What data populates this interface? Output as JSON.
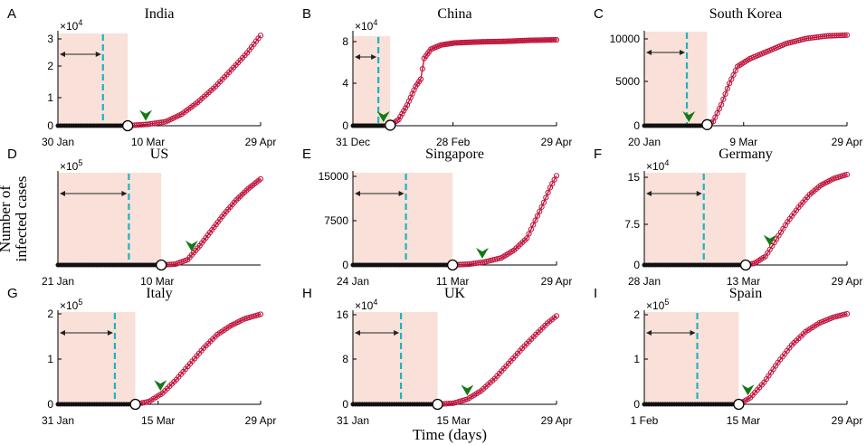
{
  "figure": {
    "xlabel": "Time (days)",
    "ylabel_line1": "Number of",
    "ylabel_line2": "infected cases"
  },
  "colors": {
    "curve": "#c0143c",
    "window": "#f9e0d8",
    "dash": "#1bb5c0",
    "arrowhead": "#137a13"
  },
  "chart_data": [
    {
      "type": "line",
      "letter": "A",
      "title": "India",
      "multiplier": "×10",
      "exponent": "4",
      "ylim": [
        0,
        3.2
      ],
      "yticks": [
        "0",
        "1",
        "2",
        "3"
      ],
      "ytick_values": [
        0,
        1,
        2,
        3
      ],
      "xticks": [
        "30 Jan",
        "10 Mar",
        "29 Apr"
      ],
      "xtick_days": [
        0,
        40,
        90
      ],
      "xmax": 90,
      "window_end_day": 31,
      "dash_day": 20,
      "open_circle_day": 31,
      "arrow_day": 39,
      "series": [
        {
          "day": 0,
          "value": 0
        },
        {
          "day": 31,
          "value": 0
        },
        {
          "day": 40,
          "value": 0.05
        },
        {
          "day": 48,
          "value": 0.14
        },
        {
          "day": 55,
          "value": 0.4
        },
        {
          "day": 62,
          "value": 0.8
        },
        {
          "day": 70,
          "value": 1.35
        },
        {
          "day": 78,
          "value": 2.0
        },
        {
          "day": 84,
          "value": 2.5
        },
        {
          "day": 90,
          "value": 3.1
        }
      ]
    },
    {
      "type": "line",
      "letter": "B",
      "title": "China",
      "multiplier": "×10",
      "exponent": "4",
      "ylim": [
        0,
        9
      ],
      "yticks": [
        "0",
        "4",
        "8"
      ],
      "ytick_values": [
        0,
        4,
        8
      ],
      "xticks": [
        "31 Dec",
        "28 Feb",
        "29 Apr"
      ],
      "xtick_days": [
        0,
        59,
        120
      ],
      "xmax": 120,
      "window_end_day": 22,
      "dash_day": 15,
      "open_circle_day": 22,
      "arrow_day": 18,
      "series": [
        {
          "day": 0,
          "value": 0
        },
        {
          "day": 19,
          "value": 0
        },
        {
          "day": 22,
          "value": 0.05
        },
        {
          "day": 27,
          "value": 0.6
        },
        {
          "day": 32,
          "value": 2.0
        },
        {
          "day": 37,
          "value": 3.8
        },
        {
          "day": 40,
          "value": 4.5
        },
        {
          "day": 42,
          "value": 6.5
        },
        {
          "day": 46,
          "value": 7.4
        },
        {
          "day": 52,
          "value": 7.8
        },
        {
          "day": 60,
          "value": 8.0
        },
        {
          "day": 75,
          "value": 8.1
        },
        {
          "day": 90,
          "value": 8.15
        },
        {
          "day": 105,
          "value": 8.25
        },
        {
          "day": 120,
          "value": 8.3
        }
      ]
    },
    {
      "type": "line",
      "letter": "C",
      "title": "South Korea",
      "multiplier": "",
      "exponent": "",
      "ylim": [
        0,
        11000
      ],
      "yticks": [
        "0",
        "5000",
        "10000"
      ],
      "ytick_values": [
        0,
        5000,
        10000
      ],
      "xticks": [
        "20 Jan",
        "9 Mar",
        "29 Apr"
      ],
      "xtick_days": [
        0,
        49,
        100
      ],
      "xmax": 100,
      "window_end_day": 31,
      "dash_day": 21,
      "open_circle_day": 31,
      "arrow_day": 22,
      "series": [
        {
          "day": 0,
          "value": 0
        },
        {
          "day": 30,
          "value": 0
        },
        {
          "day": 34,
          "value": 500
        },
        {
          "day": 38,
          "value": 2500
        },
        {
          "day": 42,
          "value": 5000
        },
        {
          "day": 46,
          "value": 7000
        },
        {
          "day": 52,
          "value": 7900
        },
        {
          "day": 60,
          "value": 8700
        },
        {
          "day": 70,
          "value": 9700
        },
        {
          "day": 80,
          "value": 10300
        },
        {
          "day": 90,
          "value": 10600
        },
        {
          "day": 100,
          "value": 10700
        }
      ]
    },
    {
      "type": "line",
      "letter": "D",
      "title": "US",
      "multiplier": "×10",
      "exponent": "5",
      "ylim": [
        0,
        10.5
      ],
      "yticks": [],
      "ytick_values": [],
      "xticks": [
        "21 Jan",
        "10 Mar"
      ],
      "xtick_days": [
        0,
        49
      ],
      "xmax": 100,
      "window_end_day": 51,
      "dash_day": 35,
      "open_circle_day": 51,
      "arrow_day": 66,
      "series": [
        {
          "day": 0,
          "value": 0
        },
        {
          "day": 51,
          "value": 0
        },
        {
          "day": 58,
          "value": 0.1
        },
        {
          "day": 64,
          "value": 0.6
        },
        {
          "day": 70,
          "value": 2.2
        },
        {
          "day": 76,
          "value": 4.0
        },
        {
          "day": 82,
          "value": 5.8
        },
        {
          "day": 88,
          "value": 7.4
        },
        {
          "day": 94,
          "value": 8.7
        },
        {
          "day": 100,
          "value": 9.8
        }
      ]
    },
    {
      "type": "line",
      "letter": "E",
      "title": "Singapore",
      "multiplier": "",
      "exponent": "",
      "ylim": [
        0,
        15500
      ],
      "yticks": [
        "0",
        "7500",
        "15000"
      ],
      "ytick_values": [
        0,
        7500,
        15000
      ],
      "xticks": [
        "24 Jan",
        "11 Mar",
        "29 Apr"
      ],
      "xtick_days": [
        0,
        47,
        96
      ],
      "xmax": 96,
      "window_end_day": 47,
      "dash_day": 25,
      "open_circle_day": 47,
      "arrow_day": 61,
      "series": [
        {
          "day": 0,
          "value": 0
        },
        {
          "day": 47,
          "value": 0
        },
        {
          "day": 55,
          "value": 150
        },
        {
          "day": 62,
          "value": 500
        },
        {
          "day": 70,
          "value": 1200
        },
        {
          "day": 76,
          "value": 2500
        },
        {
          "day": 82,
          "value": 4500
        },
        {
          "day": 86,
          "value": 7500
        },
        {
          "day": 90,
          "value": 10500
        },
        {
          "day": 93,
          "value": 13000
        },
        {
          "day": 96,
          "value": 15000
        }
      ]
    },
    {
      "type": "line",
      "letter": "F",
      "title": "Germany",
      "multiplier": "×10",
      "exponent": "4",
      "ylim": [
        0,
        16
      ],
      "yticks": [
        "0",
        "7.5",
        "15"
      ],
      "ytick_values": [
        0,
        7.5,
        15
      ],
      "xticks": [
        "28 Jan",
        "13 Mar",
        "29 Apr"
      ],
      "xtick_days": [
        0,
        45,
        92
      ],
      "xmax": 92,
      "window_end_day": 46,
      "dash_day": 27,
      "open_circle_day": 46,
      "arrow_day": 57,
      "series": [
        {
          "day": 0,
          "value": 0
        },
        {
          "day": 46,
          "value": 0
        },
        {
          "day": 50,
          "value": 0.3
        },
        {
          "day": 55,
          "value": 1.5
        },
        {
          "day": 60,
          "value": 4.5
        },
        {
          "day": 65,
          "value": 7.5
        },
        {
          "day": 70,
          "value": 10.0
        },
        {
          "day": 75,
          "value": 12.2
        },
        {
          "day": 80,
          "value": 13.8
        },
        {
          "day": 86,
          "value": 15.0
        },
        {
          "day": 92,
          "value": 15.7
        }
      ]
    },
    {
      "type": "line",
      "letter": "G",
      "title": "Italy",
      "multiplier": "×10",
      "exponent": "5",
      "ylim": [
        0,
        2.05
      ],
      "yticks": [
        "0",
        "1",
        "2"
      ],
      "ytick_values": [
        0,
        1,
        2
      ],
      "xticks": [
        "31 Jan",
        "15 Mar",
        "29 Apr"
      ],
      "xtick_days": [
        0,
        44,
        89
      ],
      "xmax": 89,
      "window_end_day": 34,
      "dash_day": 25,
      "open_circle_day": 34,
      "arrow_day": 45,
      "series": [
        {
          "day": 0,
          "value": 0
        },
        {
          "day": 34,
          "value": 0
        },
        {
          "day": 40,
          "value": 0.06
        },
        {
          "day": 46,
          "value": 0.25
        },
        {
          "day": 52,
          "value": 0.55
        },
        {
          "day": 58,
          "value": 0.9
        },
        {
          "day": 64,
          "value": 1.25
        },
        {
          "day": 70,
          "value": 1.55
        },
        {
          "day": 76,
          "value": 1.75
        },
        {
          "day": 82,
          "value": 1.9
        },
        {
          "day": 89,
          "value": 2.0
        }
      ]
    },
    {
      "type": "line",
      "letter": "H",
      "title": "UK",
      "multiplier": "×10",
      "exponent": "4",
      "ylim": [
        0,
        16.5
      ],
      "yticks": [
        "0",
        "8",
        "16"
      ],
      "ytick_values": [
        0,
        8,
        16
      ],
      "xticks": [
        "31 Jan",
        "15 Mar",
        "29 Apr"
      ],
      "xtick_days": [
        0,
        44,
        89
      ],
      "xmax": 89,
      "window_end_day": 37,
      "dash_day": 21,
      "open_circle_day": 37,
      "arrow_day": 50,
      "series": [
        {
          "day": 0,
          "value": 0
        },
        {
          "day": 37,
          "value": 0
        },
        {
          "day": 44,
          "value": 0.2
        },
        {
          "day": 50,
          "value": 0.9
        },
        {
          "day": 56,
          "value": 2.4
        },
        {
          "day": 62,
          "value": 4.6
        },
        {
          "day": 68,
          "value": 7.3
        },
        {
          "day": 74,
          "value": 10.0
        },
        {
          "day": 80,
          "value": 12.5
        },
        {
          "day": 85,
          "value": 14.5
        },
        {
          "day": 89,
          "value": 15.8
        }
      ]
    },
    {
      "type": "line",
      "letter": "I",
      "title": "Spain",
      "multiplier": "×10",
      "exponent": "5",
      "ylim": [
        0,
        2.1
      ],
      "yticks": [
        "0",
        "1",
        "2"
      ],
      "ytick_values": [
        0,
        1,
        2
      ],
      "xticks": [
        "1 Feb",
        "15 Mar",
        "29 Apr"
      ],
      "xtick_days": [
        0,
        43,
        88
      ],
      "xmax": 88,
      "window_end_day": 41,
      "dash_day": 23,
      "open_circle_day": 41,
      "arrow_day": 45,
      "series": [
        {
          "day": 0,
          "value": 0
        },
        {
          "day": 41,
          "value": 0
        },
        {
          "day": 46,
          "value": 0.15
        },
        {
          "day": 52,
          "value": 0.5
        },
        {
          "day": 58,
          "value": 0.95
        },
        {
          "day": 64,
          "value": 1.35
        },
        {
          "day": 70,
          "value": 1.65
        },
        {
          "day": 76,
          "value": 1.85
        },
        {
          "day": 82,
          "value": 1.98
        },
        {
          "day": 88,
          "value": 2.06
        }
      ]
    }
  ]
}
